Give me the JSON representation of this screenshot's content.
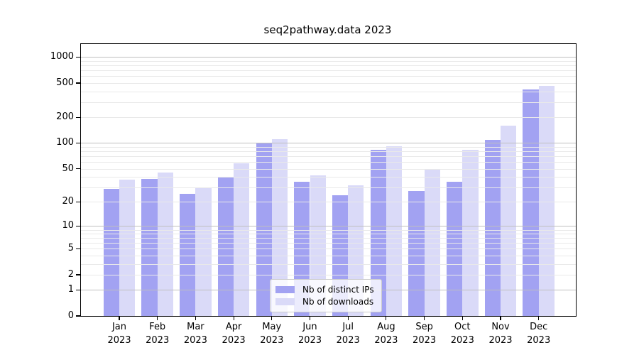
{
  "title": "seq2pathway.data 2023",
  "colors": {
    "distinct_ips": "#a2a2f2",
    "downloads": "#dadaf8",
    "grid_major": "#bfbfbf",
    "grid_minor": "#e9e9e9",
    "axis": "#000000",
    "legend_border": "#cccccc",
    "legend_bg": "rgba(255,255,255,0.8)"
  },
  "chart_data": {
    "type": "bar",
    "title": "seq2pathway.data 2023",
    "categories": [
      "Jan 2023",
      "Feb 2023",
      "Mar 2023",
      "Apr 2023",
      "May 2023",
      "Jun 2023",
      "Jul 2023",
      "Aug 2023",
      "Sep 2023",
      "Oct 2023",
      "Nov 2023",
      "Dec 2023"
    ],
    "month_labels": [
      "Jan",
      "Feb",
      "Mar",
      "Apr",
      "May",
      "Jun",
      "Jul",
      "Aug",
      "Sep",
      "Oct",
      "Nov",
      "Dec"
    ],
    "year_label": "2023",
    "series": [
      {
        "name": "Nb of distinct IPs",
        "color_key": "distinct_ips",
        "values": [
          29,
          38,
          25,
          40,
          100,
          35,
          24,
          83,
          27,
          35,
          110,
          420
        ]
      },
      {
        "name": "Nb of downloads",
        "color_key": "downloads",
        "values": [
          37,
          45,
          30,
          58,
          112,
          42,
          32,
          91,
          50,
          83,
          160,
          460
        ]
      }
    ],
    "yscale": "log10(value+1)",
    "y_ticks": [
      0,
      1,
      2,
      5,
      10,
      20,
      50,
      100,
      200,
      500,
      1000
    ],
    "grid_major_values": [
      1,
      10,
      100,
      1000
    ],
    "grid_minor_values": [
      2,
      3,
      4,
      5,
      6,
      7,
      8,
      9,
      20,
      30,
      40,
      50,
      60,
      70,
      80,
      90,
      200,
      300,
      400,
      500,
      600,
      700,
      800,
      900
    ],
    "ylim": [
      0,
      1400
    ],
    "grid": "both",
    "legend_position": "lower-center",
    "xlabel": "",
    "ylabel": ""
  }
}
